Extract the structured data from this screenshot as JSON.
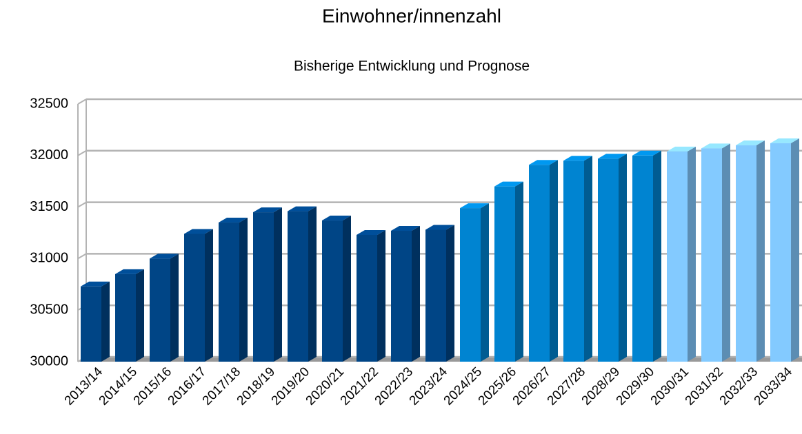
{
  "chart_data": {
    "type": "bar3d",
    "title": "Einwohner/innenzahl",
    "subtitle": "Bisherige Entwicklung und Prognose",
    "categories": [
      "2013/14",
      "2014/15",
      "2015/16",
      "2016/17",
      "2017/18",
      "2018/19",
      "2019/20",
      "2020/21",
      "2021/22",
      "2022/23",
      "2023/24",
      "2024/25",
      "2025/26",
      "2026/27",
      "2027/28",
      "2028/29",
      "2029/30",
      "2030/31",
      "2031/32",
      "2032/33",
      "2033/34"
    ],
    "values": [
      30730,
      30850,
      31000,
      31240,
      31350,
      31450,
      31460,
      31370,
      31230,
      31270,
      31280,
      31490,
      31700,
      31910,
      31950,
      31970,
      32000,
      32040,
      32070,
      32100,
      32120
    ],
    "colors": [
      "#004586",
      "#004586",
      "#004586",
      "#004586",
      "#004586",
      "#004586",
      "#004586",
      "#004586",
      "#004586",
      "#004586",
      "#004586",
      "#0084d1",
      "#0084d1",
      "#0084d1",
      "#0084d1",
      "#0084d1",
      "#0084d1",
      "#83caff",
      "#83caff",
      "#83caff",
      "#83caff"
    ],
    "ylim": [
      30000,
      32500
    ],
    "yticks": [
      30000,
      30500,
      31000,
      31500,
      32000,
      32500
    ],
    "grid": true
  }
}
